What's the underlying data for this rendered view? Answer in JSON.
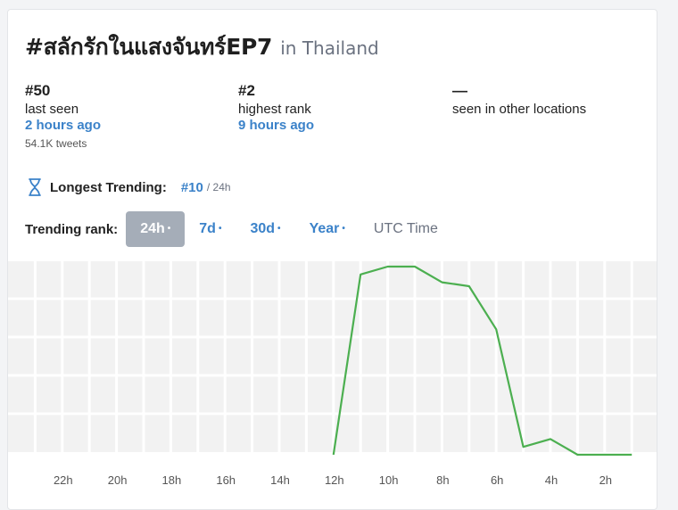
{
  "header": {
    "hashtag": "#สลักรักในแสงจันทร์EP7",
    "location": "in Thailand"
  },
  "stats": {
    "last_seen": {
      "rank": "#50",
      "label": "last seen",
      "time": "2 hours ago",
      "tweets": "54.1K tweets"
    },
    "highest_rank": {
      "rank": "#2",
      "label": "highest rank",
      "time": "9 hours ago"
    },
    "other_locations": {
      "value": "—",
      "label": "seen in other locations"
    }
  },
  "longest": {
    "icon": "hourglass-icon",
    "label": "Longest Trending:",
    "rank": "#10",
    "span": "/ 24h"
  },
  "rank_controls": {
    "label": "Trending rank:",
    "tabs": [
      {
        "label": "24h",
        "active": true
      },
      {
        "label": "7d",
        "active": false
      },
      {
        "label": "30d",
        "active": false
      },
      {
        "label": "Year",
        "active": false
      }
    ],
    "dot": "•",
    "utc": "UTC Time"
  },
  "colors": {
    "accent": "#3b82c9",
    "line": "#4caf50",
    "active_tab": "#a5adb8"
  },
  "chart_data": {
    "type": "line",
    "x_tick_labels": [
      "22h",
      "20h",
      "18h",
      "16h",
      "14h",
      "12h",
      "10h",
      "8h",
      "6h",
      "4h",
      "2h"
    ],
    "x_range_hours_ago": [
      24,
      0
    ],
    "y_rank_range": [
      2,
      50
    ],
    "grid": true,
    "series": [
      {
        "values": [
          {
            "hours_ago": 12,
            "rank": 50
          },
          {
            "hours_ago": 11,
            "rank": 4
          },
          {
            "hours_ago": 10,
            "rank": 2
          },
          {
            "hours_ago": 9,
            "rank": 2
          },
          {
            "hours_ago": 8,
            "rank": 6
          },
          {
            "hours_ago": 7,
            "rank": 7
          },
          {
            "hours_ago": 6,
            "rank": 18
          },
          {
            "hours_ago": 5,
            "rank": 48
          },
          {
            "hours_ago": 4,
            "rank": 46
          },
          {
            "hours_ago": 3,
            "rank": 50
          },
          {
            "hours_ago": 2,
            "rank": 50
          },
          {
            "hours_ago": 1,
            "rank": 50
          }
        ]
      }
    ]
  }
}
